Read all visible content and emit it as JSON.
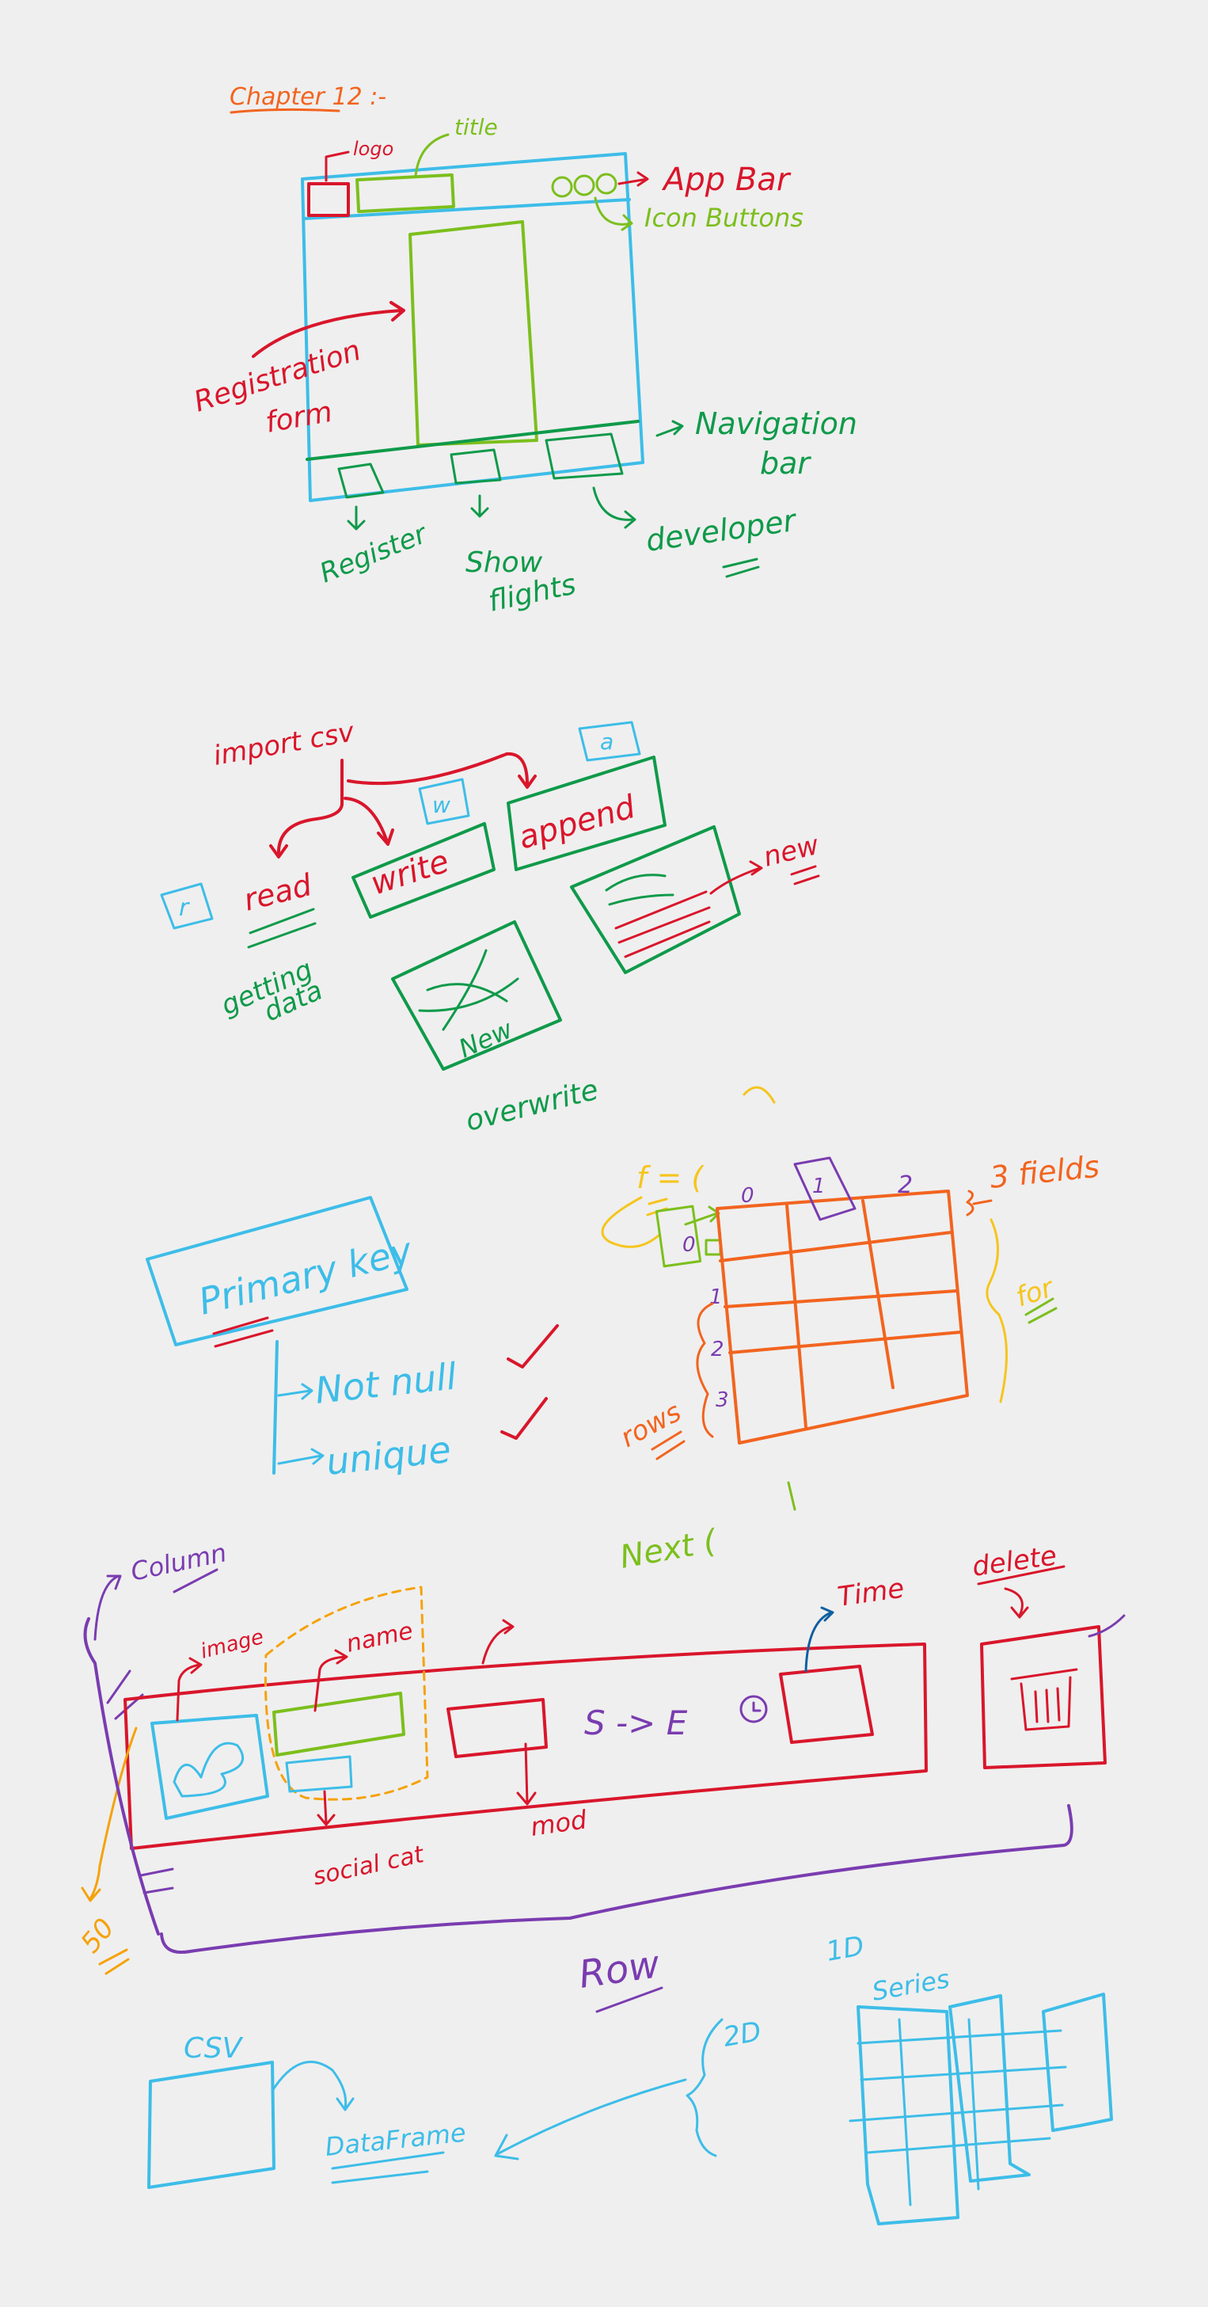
{
  "colors": {
    "background": "#efefef",
    "red": "#d9162b",
    "green": "#0f9a4a",
    "lime": "#7cbf1d",
    "blue": "#3dbde8",
    "orange": "#f2641f",
    "yellow": "#f5c51e",
    "purple": "#7a3cb0",
    "amber": "#f5a20a"
  },
  "section1": {
    "chapter": "Chapter 12 :-",
    "logo": "logo",
    "title": "title",
    "app_bar": "App Bar",
    "icon_buttons": "Icon Buttons",
    "registration_form_1": "Registration",
    "registration_form_2": "form",
    "navigation_bar_1": "Navigation",
    "navigation_bar_2": "bar",
    "register": "Register",
    "show_flights_1": "Show",
    "show_flights_2": "flights",
    "developer": "developer"
  },
  "section2": {
    "import_csv": "import csv",
    "r_badge": "r",
    "w_badge": "w",
    "a_badge": "a",
    "read": "read",
    "write": "write",
    "append": "append",
    "getting_data_1": "getting",
    "getting_data_2": "data",
    "new_in_box": "New",
    "overwrite": "overwrite",
    "new": "new"
  },
  "section3": {
    "primary_key": "Primary key",
    "not_null": "Not null",
    "unique": "unique",
    "f_label": "f = (",
    "fields": "3 fields",
    "rows": "rows",
    "for_label": "for",
    "col_indices": [
      "0",
      "1",
      "2"
    ],
    "row_indices": [
      "0",
      "1",
      "2",
      "3"
    ]
  },
  "section4": {
    "next": "Next (",
    "column": "Column",
    "image": "image",
    "name": "name",
    "time": "Time",
    "delete": "delete",
    "s_to_e": "S -> E",
    "social_cat": "social cat",
    "mod": "mod",
    "fifty": "50",
    "row": "Row"
  },
  "section5": {
    "one_d": "1D",
    "series": "Series",
    "csv": "CSV",
    "two_d": "2D",
    "dataframe": "DataFrame"
  }
}
